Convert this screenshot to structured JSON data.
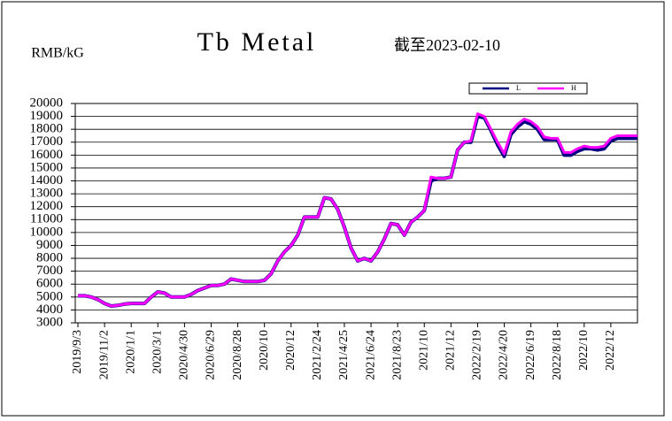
{
  "chart_data": {
    "type": "line",
    "title": "Tb Metal",
    "subtitle": "截至2023-02-10",
    "y_label": "RMB/kG",
    "categories": [
      "2019/9/3",
      null,
      null,
      null,
      "2019/11/2",
      null,
      null,
      null,
      "2020/1/1",
      null,
      null,
      null,
      "2020/3/1",
      null,
      null,
      null,
      "2020/4/30",
      null,
      null,
      null,
      "2020/6/29",
      null,
      null,
      null,
      "2020/8/28",
      null,
      null,
      null,
      "2020/10",
      null,
      null,
      null,
      "2020/12",
      null,
      null,
      null,
      "2021/2/24",
      null,
      null,
      null,
      "2021/4/25",
      null,
      null,
      null,
      "2021/6/24",
      null,
      null,
      null,
      "2021/8/23",
      null,
      null,
      null,
      "2021/10",
      null,
      null,
      null,
      "2021/12",
      null,
      null,
      null,
      "2022/2/19",
      null,
      null,
      null,
      "2022/4/20",
      null,
      null,
      null,
      "2022/6/19",
      null,
      null,
      null,
      "2022/8/18",
      null,
      null,
      null,
      "2022/10",
      null,
      null,
      null,
      "2022/12",
      null,
      null,
      null,
      null
    ],
    "series": [
      {
        "name": "L",
        "color": "#000080",
        "values": [
          5100,
          5100,
          5000,
          4800,
          4500,
          4300,
          4350,
          4450,
          4500,
          4500,
          4500,
          5000,
          5400,
          5300,
          5000,
          5000,
          5000,
          5200,
          5500,
          5700,
          5900,
          5900,
          6000,
          6400,
          6300,
          6200,
          6200,
          6200,
          6300,
          6800,
          7800,
          8500,
          9000,
          9800,
          11200,
          11200,
          11200,
          12700,
          12600,
          11800,
          10400,
          8800,
          7800,
          8000,
          7800,
          8500,
          9500,
          10700,
          10600,
          9800,
          10800,
          11200,
          11700,
          14000,
          14200,
          14200,
          14300,
          16400,
          17000,
          17000,
          19000,
          18900,
          17900,
          16800,
          15900,
          17600,
          18200,
          18600,
          18400,
          18000,
          17200,
          17200,
          17200,
          16000,
          16000,
          16300,
          16500,
          16500,
          16400,
          16500,
          17100,
          17300,
          17300,
          17300,
          17300
        ]
      },
      {
        "name": "H",
        "color": "#ff00ff",
        "values": [
          5100,
          5100,
          5000,
          4800,
          4500,
          4300,
          4350,
          4450,
          4500,
          4500,
          4500,
          5000,
          5400,
          5300,
          5000,
          5000,
          5000,
          5200,
          5500,
          5700,
          5900,
          5900,
          6000,
          6400,
          6300,
          6200,
          6200,
          6200,
          6300,
          6800,
          7800,
          8500,
          9000,
          9800,
          11200,
          11200,
          11200,
          12700,
          12600,
          11800,
          10400,
          8800,
          7800,
          8000,
          7800,
          8500,
          9500,
          10700,
          10600,
          9800,
          10800,
          11200,
          11700,
          14300,
          14200,
          14200,
          14300,
          16400,
          17000,
          17100,
          19200,
          19000,
          18000,
          17000,
          16100,
          17800,
          18400,
          18800,
          18600,
          18200,
          17400,
          17300,
          17300,
          16200,
          16200,
          16500,
          16700,
          16600,
          16600,
          16700,
          17300,
          17500,
          17500,
          17500,
          17500
        ]
      }
    ],
    "ylim": [
      3000,
      20000
    ],
    "yticks": [
      3000,
      4000,
      5000,
      6000,
      7000,
      8000,
      9000,
      10000,
      11000,
      12000,
      13000,
      14000,
      15000,
      16000,
      17000,
      18000,
      19000,
      20000
    ],
    "grid": true
  }
}
